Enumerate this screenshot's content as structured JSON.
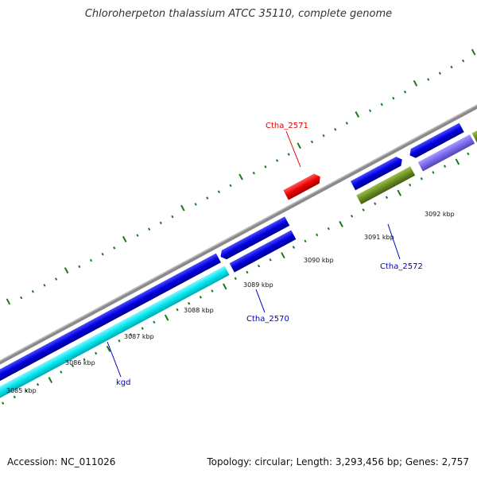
{
  "title": "Chloroherpeton thalassium ATCC 35110, complete genome",
  "footer": {
    "accession": "Accession: NC_011026",
    "summary": "Topology: circular; Length: 3,293,456 bp; Genes: 2,757"
  },
  "scale_labels": [
    "3085 kbp",
    "3086 kbp",
    "3087 kbp",
    "3088 kbp",
    "3089 kbp",
    "3090 kbp",
    "3091 kbp",
    "3092 kbp"
  ],
  "gene_labels": [
    {
      "text": "Ctha_2571",
      "color": "#e00000"
    },
    {
      "text": "Ctha_2572",
      "color": "#0000c0"
    },
    {
      "text": "Ctha_2570",
      "color": "#0000c0"
    },
    {
      "text": "kgd",
      "color": "#0000c0"
    }
  ],
  "colors": {
    "backbone": "#8a8a8a",
    "forward_gene": "#0a0ad8",
    "reverse_gene": "#0a0ad8",
    "kgd_gene": "#00e0e8",
    "ctha2571_gene": "#e80000",
    "olive_gene": "#6b8e23",
    "lavender_gene": "#7b68ee",
    "tick": "#1a7a1a"
  }
}
